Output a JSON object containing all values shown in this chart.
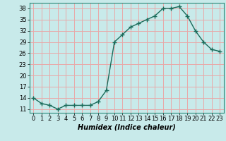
{
  "x": [
    0,
    1,
    2,
    3,
    4,
    5,
    6,
    7,
    8,
    9,
    10,
    11,
    12,
    13,
    14,
    15,
    16,
    17,
    18,
    19,
    20,
    21,
    22,
    23
  ],
  "y": [
    14,
    12.5,
    12,
    11,
    12,
    12,
    12,
    12,
    13,
    16,
    29,
    31,
    33,
    34,
    35,
    36,
    38,
    38,
    38.5,
    36,
    32,
    29,
    27,
    26.5
  ],
  "line_color": "#1a6b5a",
  "marker": "+",
  "marker_size": 4,
  "marker_linewidth": 1.0,
  "line_width": 1.0,
  "bg_color": "#c8eaea",
  "grid_color": "#e8a8a8",
  "xlabel": "Humidex (Indice chaleur)",
  "xlim": [
    -0.5,
    23.5
  ],
  "ylim": [
    10.0,
    39.5
  ],
  "yticks": [
    11,
    14,
    17,
    20,
    23,
    26,
    29,
    32,
    35,
    38
  ],
  "xticks": [
    0,
    1,
    2,
    3,
    4,
    5,
    6,
    7,
    8,
    9,
    10,
    11,
    12,
    13,
    14,
    15,
    16,
    17,
    18,
    19,
    20,
    21,
    22,
    23
  ],
  "xlabel_fontsize": 7,
  "tick_fontsize": 6
}
